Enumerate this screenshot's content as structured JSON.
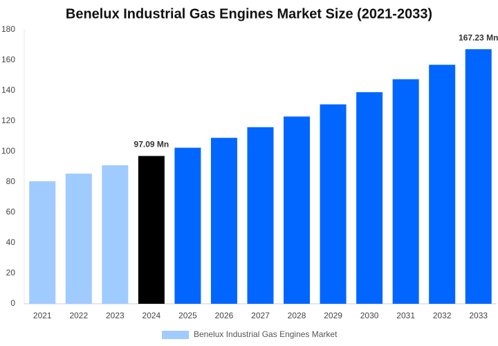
{
  "chart_data": {
    "type": "bar",
    "title": "Benelux Industrial Gas Engines Market Size (2021-2033)",
    "categories": [
      "2021",
      "2022",
      "2023",
      "2024",
      "2025",
      "2026",
      "2027",
      "2028",
      "2029",
      "2030",
      "2031",
      "2032",
      "2033"
    ],
    "series": [
      {
        "name": "Benelux Industrial Gas Engines Market",
        "color": "#a0cbff",
        "values": [
          80.5,
          85.5,
          91,
          97.09,
          102.5,
          109,
          116,
          123,
          131,
          139,
          147.5,
          157,
          167.23
        ],
        "value_labels": [
          null,
          null,
          null,
          "97.09 Mn",
          null,
          null,
          null,
          null,
          null,
          null,
          null,
          null,
          "167.23 Mn"
        ],
        "colors": [
          "#a0cbff",
          "#a0cbff",
          "#a0cbff",
          "#000000",
          "#0066ff",
          "#0066ff",
          "#0066ff",
          "#0066ff",
          "#0066ff",
          "#0066ff",
          "#0066ff",
          "#0066ff",
          "#0066ff"
        ]
      }
    ],
    "ylim": [
      0,
      180
    ],
    "yticks": [
      0,
      20,
      40,
      60,
      80,
      100,
      120,
      140,
      160,
      180
    ],
    "grid": false
  }
}
